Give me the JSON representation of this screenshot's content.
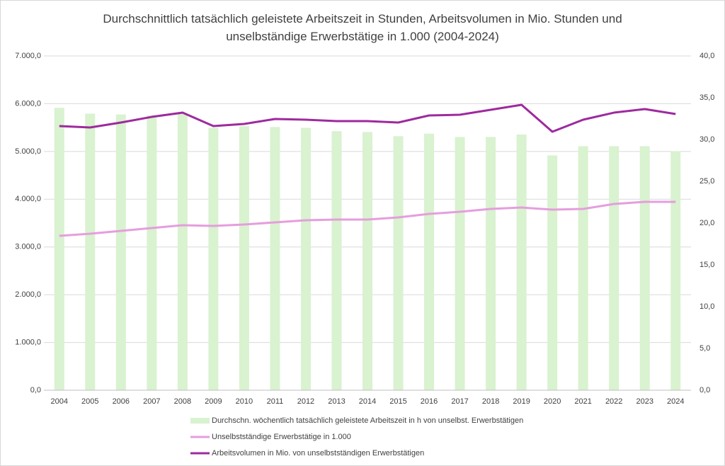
{
  "chart_data": {
    "type": "combo",
    "title": "Durchschnittlich tatsächlich geleistete Arbeitszeit in Stunden, Arbeitsvolumen in Mio. Stunden und unselbständige Erwerbstätige in 1.000 (2004-2024)",
    "categories": [
      "2004",
      "2005",
      "2006",
      "2007",
      "2008",
      "2009",
      "2010",
      "2011",
      "2012",
      "2013",
      "2014",
      "2015",
      "2016",
      "2017",
      "2018",
      "2019",
      "2020",
      "2021",
      "2022",
      "2023",
      "2024"
    ],
    "series": [
      {
        "name": "Durchschn. wöchentlich tatsächlich geleistete Arbeitszeit in h von unselbst. Erwerbstätigen",
        "type": "bar",
        "axis": "y2",
        "color": "#d9f2d0",
        "values": [
          33.8,
          33.1,
          33.0,
          32.9,
          33.1,
          31.4,
          31.6,
          31.5,
          31.4,
          31.0,
          30.9,
          30.4,
          30.7,
          30.3,
          30.3,
          30.6,
          28.1,
          29.2,
          29.2,
          29.2,
          28.6
        ]
      },
      {
        "name": "Unselbstständige Erwerbstätige in 1.000",
        "type": "line",
        "axis": "y",
        "color": "#e59edd",
        "values": [
          3233,
          3277,
          3337,
          3396,
          3455,
          3441,
          3470,
          3515,
          3559,
          3574,
          3574,
          3619,
          3693,
          3737,
          3797,
          3826,
          3782,
          3797,
          3900,
          3945,
          3945
        ]
      },
      {
        "name": "Arbeitsvolumen in Mio. von unselbstständigen Erwerbstätigen",
        "type": "line",
        "axis": "y",
        "color": "#9e2a9e",
        "values": [
          5532,
          5502,
          5606,
          5724,
          5813,
          5532,
          5576,
          5680,
          5665,
          5636,
          5636,
          5606,
          5754,
          5769,
          5873,
          5977,
          5413,
          5665,
          5813,
          5888,
          5784
        ]
      }
    ],
    "ylim": [
      0,
      7000
    ],
    "yticks": [
      {
        "value": 0,
        "label": "0,0"
      },
      {
        "value": 1000,
        "label": "1.000,0"
      },
      {
        "value": 2000,
        "label": "2.000,0"
      },
      {
        "value": 3000,
        "label": "3.000,0"
      },
      {
        "value": 4000,
        "label": "4.000,0"
      },
      {
        "value": 5000,
        "label": "5.000,0"
      },
      {
        "value": 6000,
        "label": "6.000,0"
      },
      {
        "value": 7000,
        "label": "7.000,0"
      }
    ],
    "y2lim": [
      0,
      40
    ],
    "y2ticks": [
      {
        "value": 0,
        "label": "0,0"
      },
      {
        "value": 5,
        "label": "5,0"
      },
      {
        "value": 10,
        "label": "10,0"
      },
      {
        "value": 15,
        "label": "15,0"
      },
      {
        "value": 20,
        "label": "20,0"
      },
      {
        "value": 25,
        "label": "25,0"
      },
      {
        "value": 30,
        "label": "30,0"
      },
      {
        "value": 35,
        "label": "35,0"
      },
      {
        "value": 40,
        "label": "40,0"
      }
    ],
    "grid": true
  }
}
